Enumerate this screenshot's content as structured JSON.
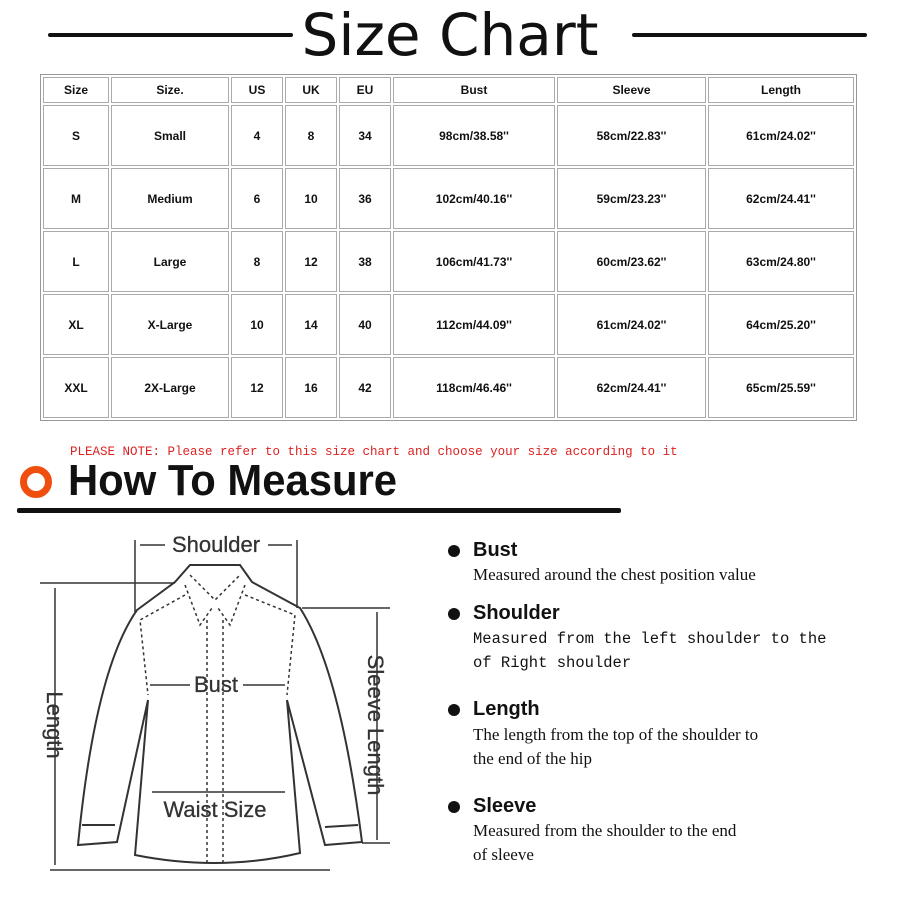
{
  "title": "Size Chart",
  "table": {
    "headers": [
      "Size",
      "Size.",
      "US",
      "UK",
      "EU",
      "Bust",
      "Sleeve",
      "Length"
    ],
    "rows": [
      [
        "S",
        "Small",
        "4",
        "8",
        "34",
        "98cm/38.58''",
        "58cm/22.83''",
        "61cm/24.02''"
      ],
      [
        "M",
        "Medium",
        "6",
        "10",
        "36",
        "102cm/40.16''",
        "59cm/23.23''",
        "62cm/24.41''"
      ],
      [
        "L",
        "Large",
        "8",
        "12",
        "38",
        "106cm/41.73''",
        "60cm/23.62''",
        "63cm/24.80''"
      ],
      [
        "XL",
        "X-Large",
        "10",
        "14",
        "40",
        "112cm/44.09''",
        "61cm/24.02''",
        "64cm/25.20''"
      ],
      [
        "XXL",
        "2X-Large",
        "12",
        "16",
        "42",
        "118cm/46.46''",
        "62cm/24.41''",
        "65cm/25.59''"
      ]
    ]
  },
  "note": "PLEASE NOTE: Please refer to this size chart and choose your size according to it",
  "how_to_measure": "How To Measure",
  "accent_color": "#f04e0f",
  "diagram": {
    "shoulder": "Shoulder",
    "bust": "Bust",
    "length": "Length",
    "sleeve_length": "Sleeve Length",
    "waist": "Waist Size"
  },
  "measures": [
    {
      "heading": "Bust",
      "desc": [
        "Measured around the chest position value"
      ]
    },
    {
      "heading": "Shoulder",
      "desc": [
        "Measured from the left shoulder to the",
        "of Right shoulder"
      ]
    },
    {
      "heading": "Length",
      "desc": [
        "The length from the top of the shoulder to",
        "the end of the hip"
      ]
    },
    {
      "heading": "Sleeve",
      "desc": [
        "Measured from the shoulder to the end",
        "of sleeve"
      ]
    }
  ]
}
